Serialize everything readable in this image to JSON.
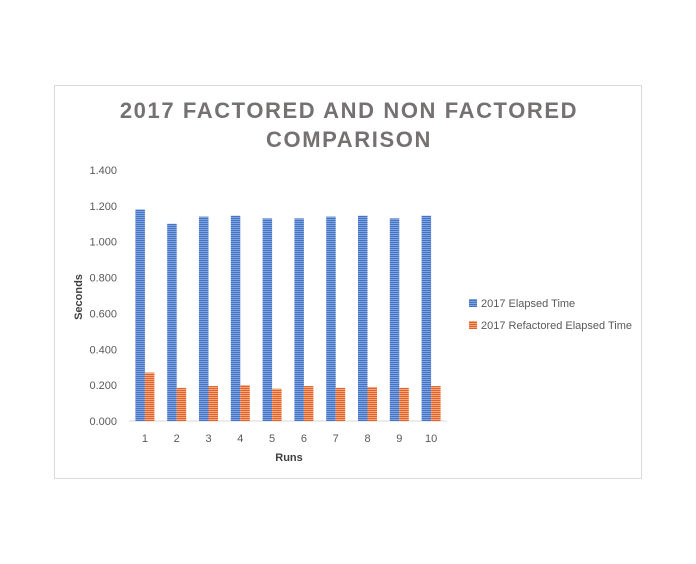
{
  "chart_data": {
    "type": "bar",
    "title_lines": [
      "2017 FACTORED AND NON FACTORED",
      "COMPARISON"
    ],
    "xlabel": "Runs",
    "ylabel": "Seconds",
    "categories": [
      "1",
      "2",
      "3",
      "4",
      "5",
      "6",
      "7",
      "8",
      "9",
      "10"
    ],
    "y_ticks": [
      "0.000",
      "0.200",
      "0.400",
      "0.600",
      "0.800",
      "1.000",
      "1.200",
      "1.400"
    ],
    "ylim": [
      0,
      1.4
    ],
    "grid": false,
    "legend_position": "right",
    "series": [
      {
        "name": "2017 Elapsed Time",
        "color": "#4472c4",
        "values": [
          1.18,
          1.1,
          1.14,
          1.145,
          1.13,
          1.13,
          1.14,
          1.145,
          1.13,
          1.145
        ]
      },
      {
        "name": "2017 Refactored Elapsed Time",
        "color": "#ed7d31",
        "values": [
          0.27,
          0.185,
          0.195,
          0.2,
          0.18,
          0.195,
          0.185,
          0.19,
          0.185,
          0.195
        ]
      }
    ]
  }
}
